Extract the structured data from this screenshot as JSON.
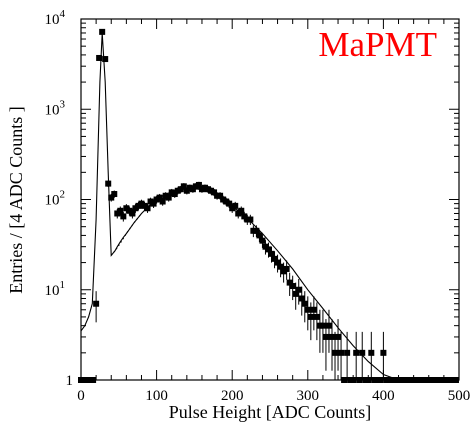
{
  "chart_data": {
    "type": "scatter",
    "title": "",
    "annotation": "MaPMT",
    "annotation_color": "#ff0000",
    "xlabel": "Pulse Height  [ADC Counts]",
    "ylabel": "Entries / [4 ADC Counts ]",
    "xlim": [
      0,
      500
    ],
    "ylim": [
      1,
      10000
    ],
    "yscale": "log",
    "grid": false,
    "legend": "none",
    "x_ticks": [
      "0",
      "100",
      "200",
      "300",
      "400",
      "500"
    ],
    "y_ticks": [
      {
        "base": "1",
        "exp": ""
      },
      {
        "base": "10",
        "exp": "1"
      },
      {
        "base": "10",
        "exp": "2"
      },
      {
        "base": "10",
        "exp": "3"
      },
      {
        "base": "10",
        "exp": "4"
      }
    ],
    "series": [
      {
        "kind": "points_with_error_bars",
        "marker": "square",
        "color": "#000000",
        "x": [
          0,
          4,
          8,
          12,
          16,
          20,
          24,
          28,
          32,
          36,
          40,
          44,
          48,
          52,
          56,
          60,
          64,
          68,
          72,
          76,
          80,
          84,
          88,
          92,
          96,
          100,
          104,
          108,
          112,
          116,
          120,
          124,
          128,
          132,
          136,
          140,
          144,
          148,
          152,
          156,
          160,
          164,
          168,
          172,
          176,
          180,
          184,
          188,
          192,
          196,
          200,
          204,
          208,
          212,
          216,
          220,
          224,
          228,
          232,
          236,
          240,
          244,
          248,
          252,
          256,
          260,
          264,
          268,
          272,
          276,
          280,
          284,
          288,
          292,
          296,
          300,
          304,
          308,
          312,
          316,
          320,
          324,
          328,
          332,
          336,
          340,
          344,
          348,
          352,
          356,
          360,
          364,
          368,
          372,
          376,
          380,
          384,
          388,
          392,
          396,
          400,
          404,
          408,
          412,
          416,
          420,
          424,
          428,
          432,
          436,
          440,
          444,
          448,
          452,
          456,
          460,
          464,
          468,
          472,
          476,
          480,
          484,
          488,
          492,
          496
        ],
        "y": [
          1,
          1,
          1,
          1,
          1,
          7,
          3700,
          7200,
          3600,
          150,
          105,
          115,
          70,
          75,
          65,
          80,
          75,
          70,
          80,
          85,
          90,
          85,
          80,
          95,
          90,
          100,
          105,
          95,
          110,
          105,
          120,
          115,
          125,
          130,
          140,
          125,
          135,
          130,
          140,
          145,
          130,
          135,
          130,
          125,
          120,
          110,
          110,
          100,
          95,
          90,
          80,
          85,
          70,
          75,
          65,
          60,
          60,
          45,
          45,
          40,
          35,
          30,
          28,
          25,
          22,
          20,
          18,
          16,
          17,
          12,
          11,
          9,
          10,
          8,
          7,
          6,
          5,
          6,
          5,
          4,
          4,
          3,
          4,
          3,
          2,
          3,
          2,
          1,
          2,
          1,
          1,
          2,
          1,
          2,
          1,
          1,
          2,
          1,
          1,
          1,
          2,
          1,
          1,
          1,
          1,
          1,
          1,
          1,
          1,
          1,
          1,
          1,
          1,
          1,
          1,
          1,
          1,
          1,
          1,
          1,
          1,
          1,
          1,
          1,
          1
        ]
      },
      {
        "kind": "fit_line_solid",
        "color": "#000000",
        "x": [
          0,
          5,
          10,
          15,
          20,
          25,
          28,
          32,
          36,
          40,
          45,
          48,
          52,
          56,
          60,
          70,
          80,
          90,
          100,
          110,
          120,
          130,
          140,
          150,
          160,
          170,
          180,
          190,
          200,
          220,
          240,
          260,
          280,
          300,
          320,
          340,
          360,
          380,
          400,
          420
        ],
        "y": [
          3.5,
          4,
          5,
          7,
          60,
          2000,
          7000,
          2000,
          200,
          24,
          27,
          30,
          34,
          38,
          42,
          55,
          70,
          85,
          100,
          112,
          122,
          130,
          133,
          132,
          128,
          120,
          110,
          98,
          85,
          62,
          42,
          27,
          17,
          10,
          6.2,
          3.8,
          2.4,
          1.6,
          1.15,
          1
        ]
      },
      {
        "kind": "fit_line_dotted",
        "color": "#000000",
        "x": [
          40,
          45,
          50,
          55,
          60,
          65,
          70,
          75,
          80
        ],
        "y": [
          24,
          27,
          31,
          36,
          42,
          48,
          55,
          62,
          70
        ]
      }
    ]
  }
}
